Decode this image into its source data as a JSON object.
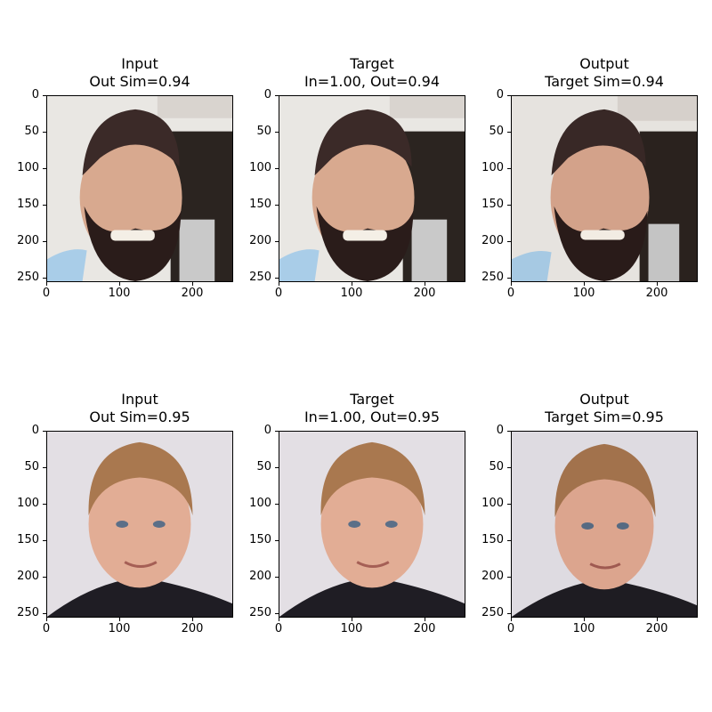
{
  "figure": {
    "rows": [
      {
        "panels": [
          {
            "title_line1": "Input",
            "title_line2": "Out Sim=0.94",
            "subject": "bearded-man-photo"
          },
          {
            "title_line1": "Target",
            "title_line2": "In=1.00, Out=0.94",
            "subject": "bearded-man-photo"
          },
          {
            "title_line1": "Output",
            "title_line2": "Target Sim=0.94",
            "subject": "bearded-man-photo"
          }
        ]
      },
      {
        "panels": [
          {
            "title_line1": "Input",
            "title_line2": "Out Sim=0.95",
            "subject": "blond-man-photo"
          },
          {
            "title_line1": "Target",
            "title_line2": "In=1.00, Out=0.95",
            "subject": "blond-man-photo"
          },
          {
            "title_line1": "Output",
            "title_line2": "Target Sim=0.95",
            "subject": "blond-man-photo"
          }
        ]
      }
    ],
    "axis": {
      "y_ticks": [
        "0",
        "50",
        "100",
        "150",
        "200",
        "250"
      ],
      "x_ticks": [
        "0",
        "100",
        "200"
      ]
    },
    "colors": {
      "row1_background": "#e9e7e3",
      "row1_hair": "#3b2a28",
      "row1_skin": "#d8a98f",
      "row1_beard": "#2a1c1a",
      "row1_shirt": "#a9cde8",
      "row1_door": "#2b2420",
      "row2_background": "#e3dfe4",
      "row2_hair": "#a9784f",
      "row2_skin": "#e2ad95",
      "row2_shirt": "#1f1d24"
    }
  }
}
